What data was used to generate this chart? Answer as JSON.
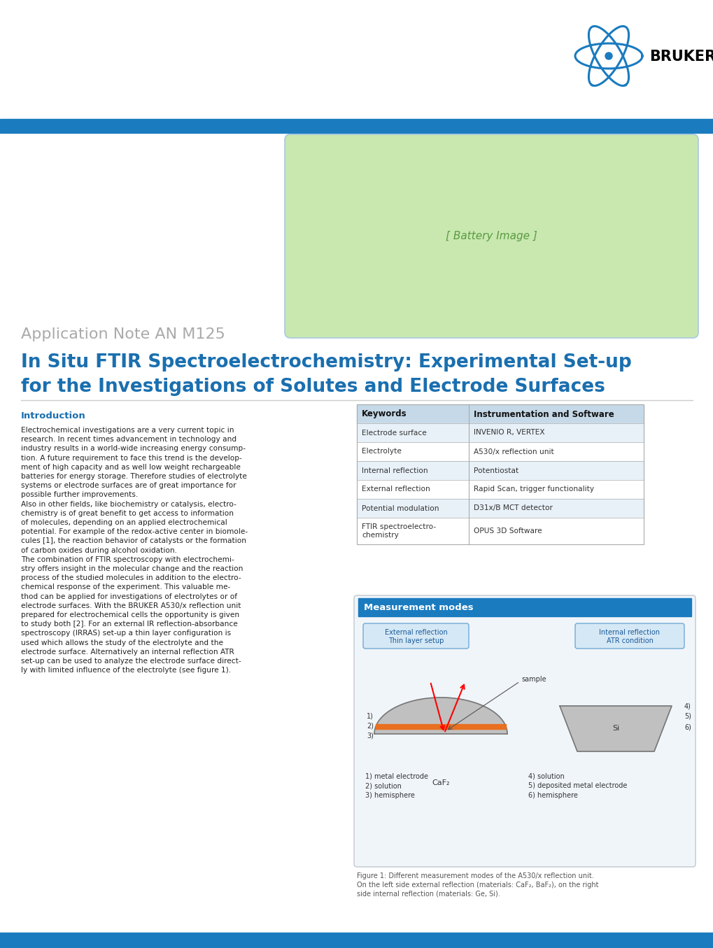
{
  "page_width": 10.2,
  "page_height": 13.55,
  "bg_color": "#ffffff",
  "blue_bar_color": "#1a7bbf",
  "logo_text": "BRUKER",
  "app_note_label": "Application Note AN M125",
  "title_line1": "In Situ FTIR Spectroelectrochemistry: Experimental Set-up",
  "title_line2": "for the Investigations of Solutes and Electrode Surfaces",
  "title_color": "#1a6faf",
  "title_fontsize": 19,
  "app_note_color": "#aaaaaa",
  "app_note_fontsize": 16,
  "section_intro_title": "Introduction",
  "section_intro_color": "#1a6faf",
  "intro_text_lines": [
    "Electrochemical investigations are a very current topic in",
    "research. In recent times advancement in technology and",
    "industry results in a world-wide increasing energy consump-",
    "tion. A future requirement to face this trend is the develop-",
    "ment of high capacity and as well low weight rechargeable",
    "batteries for energy storage. Therefore studies of electrolyte",
    "systems or electrode surfaces are of great importance for",
    "possible further improvements.",
    "Also in other fields, like biochemistry or catalysis, electro-",
    "chemistry is of great benefit to get access to information",
    "of molecules, depending on an applied electrochemical",
    "potential. For example of the redox-active center in biomole-",
    "cules [1], the reaction behavior of catalysts or the formation",
    "of carbon oxides during alcohol oxidation.",
    "The combination of FTIR spectroscopy with electrochemi-",
    "stry offers insight in the molecular change and the reaction",
    "process of the studied molecules in addition to the electro-",
    "chemical response of the experiment. This valuable me-",
    "thod can be applied for investigations of electrolytes or of",
    "electrode surfaces. With the BRUKER A530/x reflection unit",
    "prepared for electrochemical cells the opportunity is given",
    "to study both [2]. For an external IR reflection-absorbance",
    "spectroscopy (IRRAS) set-up a thin layer configuration is",
    "used which allows the study of the electrolyte and the",
    "electrode surface. Alternatively an internal reflection ATR",
    "set-up can be used to analyze the electrode surface direct-",
    "ly with limited influence of the electrolyte (see figure 1)."
  ],
  "keywords_header": "Keywords",
  "instrumentation_header": "Instrumentation and Software",
  "table_keywords": [
    "Electrode surface",
    "Electrolyte",
    "Internal reflection",
    "External reflection",
    "Potential modulation",
    "FTIR spectroelectro-\nchemistry"
  ],
  "table_instrumentation": [
    "INVENIO R, VERTEX",
    "A530/x reflection unit",
    "Potentiostat",
    "Rapid Scan, trigger functionality",
    "D31x/B MCT detector",
    "OPUS 3D Software"
  ],
  "table_header_bg": "#c5d9e8",
  "table_row_alt_bg": "#e8f1f8",
  "table_row_white": "#ffffff",
  "measurement_modes_title": "Measurement modes",
  "ext_refl_label": "External reflection\nThin layer setup",
  "int_refl_label": "Internal reflection\nATR condition",
  "sample_label": "sample",
  "left_crystal": "CaF₂",
  "right_crystal": "Si",
  "left_labels": [
    "1) metal electrode",
    "2) solution",
    "3) hemisphere"
  ],
  "right_labels": [
    "4) solution",
    "5) deposited metal electrode",
    "6) hemisphere"
  ],
  "figure_caption_lines": [
    "Figure 1: Different measurement modes of the A530/x reflection unit.",
    "On the left side external reflection (materials: CaF₂, BaF₂), on the right",
    "side internal reflection (materials: Ge, Si)."
  ],
  "meas_box_bg": "#f0f5fa",
  "meas_box_border": "#c0c8d0"
}
